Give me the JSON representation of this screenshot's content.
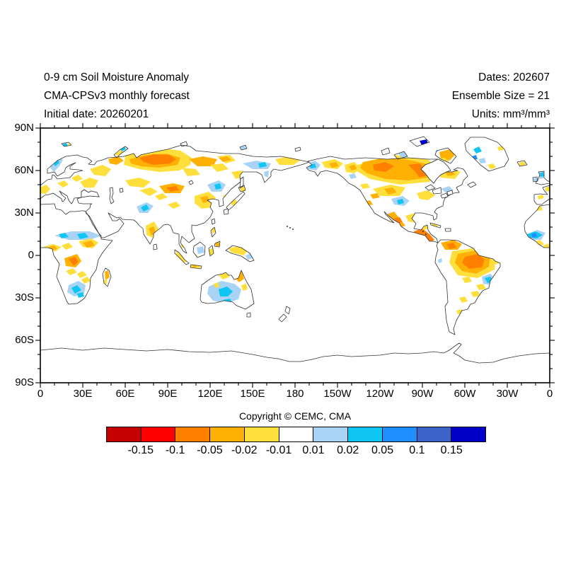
{
  "header": {
    "left": [
      "0-9 cm Soil Moisture Anomaly",
      "CMA-CPSv3 monthly forecast",
      "Initial date: 20260201"
    ],
    "right": [
      "Dates: 202607",
      "Ensemble Size = 21",
      "Units: mm³/mm³"
    ]
  },
  "footer": {
    "copyright": "Copyright © CEMC, CMA"
  },
  "map": {
    "lat_labels": [
      "90N",
      "60N",
      "30N",
      "0",
      "30S",
      "60S",
      "90S"
    ],
    "lon_labels": [
      "0",
      "30E",
      "60E",
      "90E",
      "120E",
      "150E",
      "180",
      "150W",
      "120W",
      "90W",
      "60W",
      "30W",
      "0"
    ]
  },
  "colorbar": {
    "labels": [
      "-0.15",
      "-0.1",
      "-0.05",
      "-0.02",
      "-0.01",
      "0.01",
      "0.02",
      "0.05",
      "0.1",
      "0.15"
    ],
    "colors": [
      "#c40000",
      "#fe0000",
      "#ff8000",
      "#ffb005",
      "#ffdf3c",
      "#ffffff",
      "#a9d3f5",
      "#0fc6f2",
      "#1e8eff",
      "#3c64c8",
      "#0000c8"
    ]
  },
  "palette": {
    "y": "#ffdf3c",
    "a": "#ffb005",
    "o": "#ff8000",
    "lb": "#a9d3f5",
    "cb": "#0fc6f2",
    "b": "#1e8eff",
    "db": "#0000c8"
  },
  "patches": [
    {
      "c": "lb",
      "p": "14,56 20,44 27,40 32,45 26,55 19,62"
    },
    {
      "c": "cb",
      "p": "18,49 24,44 27,49 21,54"
    },
    {
      "c": "y",
      "p": "0,84 8,80 14,86 8,93 0,92"
    },
    {
      "c": "y",
      "p": "24,78 34,74 40,80 32,84"
    },
    {
      "c": "y",
      "p": "44,70 54,66 60,72 50,76"
    },
    {
      "c": "y",
      "p": "56,76 70,70 82,74 76,84 62,84"
    },
    {
      "c": "y",
      "p": "70,58 88,52 100,58 92,68 76,66"
    },
    {
      "c": "a",
      "p": "96,44 110,40 118,46 108,52 98,50"
    },
    {
      "c": "y",
      "p": "118,52 140,58 168,62 196,60 212,52 214,42 198,32 170,28 140,30 120,40"
    },
    {
      "c": "a",
      "p": "126,44 150,38 178,36 198,42 194,52 168,56 142,54 128,50"
    },
    {
      "c": "o",
      "p": "140,42 160,37 182,38 192,44 184,50 160,52 146,48"
    },
    {
      "c": "a",
      "p": "210,44 230,40 250,44 244,54 222,54"
    },
    {
      "c": "y",
      "p": "200,56 220,58 226,66 208,68"
    },
    {
      "c": "y",
      "p": "240,52 258,50 266,58 250,62"
    },
    {
      "c": "y",
      "p": "250,40 268,38 276,46 262,50"
    },
    {
      "c": "a",
      "p": "252,42 264,40 270,45 258,48"
    },
    {
      "c": "lb",
      "p": "286,50 306,46 326,50 322,58 300,58"
    },
    {
      "c": "cb",
      "p": "308,50 318,48 320,54 310,56"
    },
    {
      "c": "y",
      "p": "332,44 352,40 368,45 358,52 338,52"
    },
    {
      "c": "lb",
      "p": "316,62 323,60 322,70 317,68"
    },
    {
      "c": "y",
      "p": "270,62 284,60 290,68 276,72"
    },
    {
      "c": "a",
      "p": "168,82 188,78 204,82 198,92 176,92"
    },
    {
      "c": "o",
      "p": "178,84 192,82 196,88 184,90"
    },
    {
      "c": "y",
      "p": "120,74 140,70 156,76 146,84 126,82"
    },
    {
      "c": "y",
      "p": "140,88 156,84 166,90 154,96"
    },
    {
      "c": "y",
      "p": "162,96 173,92 180,98 168,102"
    },
    {
      "c": "lb",
      "p": "136,111 150,105 160,110 152,120 140,120"
    },
    {
      "c": "cb",
      "p": "142,112 150,108 154,114 146,118"
    },
    {
      "c": "y",
      "p": "180,108 192,104 198,110 188,114"
    },
    {
      "c": "y",
      "p": "149,138 161,132 167,143 159,155 150,151"
    },
    {
      "c": "a",
      "p": "153,142 160,139 163,147 157,152"
    },
    {
      "c": "y",
      "p": "218,96 238,90 248,98 244,112 228,114 218,106"
    },
    {
      "c": "a",
      "p": "226,98 236,96 240,103 230,106"
    },
    {
      "c": "a",
      "p": "240,110 246,108 248,113 242,115"
    },
    {
      "c": "lb",
      "p": "236,80 252,74 262,80 256,90 242,90"
    },
    {
      "c": "cb",
      "p": "246,80 254,78 256,85 248,87"
    },
    {
      "c": "y",
      "p": "258,96 264,93 266,100 260,102"
    },
    {
      "c": "y",
      "p": "268,104 275,100 279,106 272,110"
    },
    {
      "c": "y",
      "p": "282,84 289,82 290,88 284,90"
    },
    {
      "c": "y",
      "p": "214,140 221,137 224,145 216,150"
    },
    {
      "c": "y",
      "p": "198,160 204,157 208,165 200,170"
    },
    {
      "c": "y",
      "p": "192,174 201,181 208,188 202,191 192,179"
    },
    {
      "c": "y",
      "p": "213,193 227,195 226,198 212,197"
    },
    {
      "c": "a",
      "p": "216,193 221,194 220,197 215,196"
    },
    {
      "c": "lb",
      "p": "221,169 230,167 232,176 223,178"
    },
    {
      "c": "y",
      "p": "216,176 222,180 219,184 214,179"
    },
    {
      "c": "y",
      "p": "238,172 244,169 246,178 240,181"
    },
    {
      "c": "y",
      "p": "266,170 280,167 292,174 288,180 270,176"
    },
    {
      "c": "lb",
      "p": "290,180 298,177 300,184 293,186"
    },
    {
      "c": "y",
      "p": "242,142 247,140 248,147 243,149"
    },
    {
      "c": "a",
      "p": "247,163 253,161 253,167 248,167"
    },
    {
      "c": "lb",
      "p": "238,224 256,216 274,220 284,228 280,242 262,248 244,244 236,234"
    },
    {
      "c": "cb",
      "p": "252,228 264,224 272,231 265,238 254,238"
    },
    {
      "c": "cb",
      "p": "258,243 268,241 271,247 261,249"
    },
    {
      "c": "a",
      "p": "277,204 284,200 288,213 281,218 275,212"
    },
    {
      "c": "y",
      "p": "252,208 262,204 268,210 258,214"
    },
    {
      "c": "y",
      "p": "284,222 291,220 293,228 286,230"
    },
    {
      "c": "y",
      "p": "245,220 251,218 253,224 247,226"
    },
    {
      "c": "lb",
      "p": "20,152 44,146 70,146 86,152 70,158 40,158"
    },
    {
      "c": "cb",
      "p": "26,150 35,148 40,154 30,156"
    },
    {
      "c": "cb",
      "p": "52,150 63,148 68,154 56,157"
    },
    {
      "c": "y",
      "p": "4,168 18,164 30,168 22,174 8,174"
    },
    {
      "c": "a",
      "p": "12,168 20,166 24,171 16,173"
    },
    {
      "c": "y",
      "p": "54,160 72,156 82,162 74,170 60,168"
    },
    {
      "c": "a",
      "p": "60,162 72,159 77,166 66,169"
    },
    {
      "c": "y",
      "p": "30,166 40,162 46,168 36,172"
    },
    {
      "c": "a",
      "p": "34,184 52,178 58,188 50,197 36,195"
    },
    {
      "c": "o",
      "p": "40,185 49,182 54,189 47,195"
    },
    {
      "c": "y",
      "p": "36,202 46,198 52,204 42,208"
    },
    {
      "c": "y",
      "p": "52,206 60,202 66,208 56,212"
    },
    {
      "c": "lb",
      "p": "40,222 54,216 64,222 62,234 48,238 38,232"
    },
    {
      "c": "cb",
      "p": "44,226 52,222 58,229 49,234"
    },
    {
      "c": "cb",
      "p": "52,234 60,232 62,238 54,240"
    },
    {
      "c": "y",
      "p": "58,214 66,210 72,216 62,220"
    },
    {
      "c": "a",
      "p": "91,203 96,201 98,211 92,215"
    },
    {
      "c": "y",
      "p": "90,215 94,213 94,221 90,219"
    },
    {
      "c": "lb",
      "p": "684,152 702,144 714,148 708,158 690,158"
    },
    {
      "c": "cb",
      "p": "688,150 700,146 710,151 702,156 692,155"
    },
    {
      "c": "b",
      "p": "694,150 700,148 702,153 696,155"
    },
    {
      "c": "y",
      "p": "696,162 706,158 712,164 704,168"
    },
    {
      "c": "y",
      "p": "711,166 718,163 720,170 712,171"
    },
    {
      "c": "y",
      "p": "700,112 708,110 710,116 702,117"
    },
    {
      "c": "lb",
      "p": "704,62 712,60 714,70 706,72"
    },
    {
      "c": "cb",
      "p": "706,64 711,62 712,68 707,69"
    },
    {
      "c": "lb",
      "p": "697,71 702,70 703,75 698,76"
    },
    {
      "c": "y",
      "p": "703,96 710,94 712,99 704,101"
    },
    {
      "c": "y",
      "p": "714,84 720,82 720,90 714,89"
    },
    {
      "c": "lb",
      "p": "376,50 388,46 396,52 390,60 378,58"
    },
    {
      "c": "cb",
      "p": "380,52 388,50 390,56 382,57"
    },
    {
      "c": "y",
      "p": "398,48 416,44 428,50 420,58 402,56"
    },
    {
      "c": "a",
      "p": "408,50 418,48 422,54 412,56"
    },
    {
      "c": "y",
      "p": "430,52 444,48 452,57 444,64 432,62"
    },
    {
      "c": "a",
      "p": "436,54 444,52 448,58 440,60"
    },
    {
      "c": "lb",
      "p": "436,66 444,64 447,70 439,72"
    },
    {
      "c": "y",
      "p": "448,52 500,38 548,44 562,58 550,76 508,80 466,72 446,60"
    },
    {
      "c": "a",
      "p": "456,48 486,42 516,44 544,50 556,58 548,70 520,74 488,72 462,64 452,56"
    },
    {
      "c": "o",
      "p": "470,52 488,48 500,54 488,62 472,60"
    },
    {
      "c": "o",
      "p": "520,52 536,50 544,58 532,64"
    },
    {
      "c": "o",
      "p": "530,62 542,60 546,67 536,70"
    },
    {
      "c": "db",
      "p": "536,18 546,16 548,22 539,24"
    },
    {
      "c": "b",
      "p": "524,28 534,26 536,32 527,34"
    },
    {
      "c": "cb",
      "p": "552,28 560,26 562,33 554,34"
    },
    {
      "c": "lb",
      "p": "506,36 518,32 522,39 510,42"
    },
    {
      "c": "a",
      "p": "564,34 578,30 586,38 578,46 566,44"
    },
    {
      "c": "y",
      "p": "560,44 572,42 578,49 568,52"
    },
    {
      "c": "y",
      "p": "560,60 580,56 594,62 586,72 566,70"
    },
    {
      "c": "a",
      "p": "572,62 582,60 586,66 576,68"
    },
    {
      "c": "lb",
      "p": "566,86 578,82 584,88 574,92"
    },
    {
      "c": "y",
      "p": "470,86 494,80 516,84 508,96 480,96"
    },
    {
      "c": "a",
      "p": "486,86 498,84 504,91 492,94"
    },
    {
      "c": "a",
      "p": "466,94 476,92 480,98 470,100"
    },
    {
      "c": "lb",
      "p": "496,100 512,96 522,103 514,110 500,108"
    },
    {
      "c": "cb",
      "p": "504,102 512,100 514,106 506,108"
    },
    {
      "c": "y",
      "p": "532,92 548,88 558,95 548,102 536,100"
    },
    {
      "c": "y",
      "p": "452,80 462,78 466,84 456,86"
    },
    {
      "c": "a",
      "p": "458,104 466,102 470,108 462,110"
    },
    {
      "c": "a",
      "p": "490,122 500,118 508,128 516,138 508,141 496,132"
    },
    {
      "c": "o",
      "p": "500,128 508,126 512,133 504,135"
    },
    {
      "c": "y",
      "p": "516,124 530,120 540,127 532,134 520,132"
    },
    {
      "c": "o",
      "p": "528,146 540,142 550,150 557,158 551,162 538,154 530,152"
    },
    {
      "c": "y",
      "p": "540,138 548,136 550,142 542,144"
    },
    {
      "c": "y",
      "p": "553,135 562,137 561,140 554,138"
    },
    {
      "c": "y",
      "p": "582,174 624,168 644,178 642,200 618,212 590,208 578,190"
    },
    {
      "c": "a",
      "p": "590,178 620,172 636,180 634,196 616,206 596,202 586,190"
    },
    {
      "c": "o",
      "p": "600,182 618,178 628,186 624,197 606,199 596,190"
    },
    {
      "c": "a",
      "p": "566,162 584,158 596,164 590,172 572,172"
    },
    {
      "c": "o",
      "p": "574,164 584,162 588,169 578,171"
    },
    {
      "c": "y",
      "p": "636,186 646,184 650,191 640,193"
    },
    {
      "c": "lb",
      "p": "624,210 636,206 644,213 638,222 626,220"
    },
    {
      "c": "cb",
      "p": "628,212 636,210 640,217 632,219"
    },
    {
      "c": "y",
      "p": "616,222 626,220 630,227 620,229"
    },
    {
      "c": "y",
      "p": "608,232 618,230 622,237 612,239"
    },
    {
      "c": "y",
      "p": "596,212 606,210 610,217 600,219"
    },
    {
      "c": "y",
      "p": "592,240 600,238 604,245 596,247"
    },
    {
      "c": "y",
      "p": "588,258 596,256 598,262 590,263"
    },
    {
      "c": "y",
      "p": "584,281 590,279 592,285 585,286"
    },
    {
      "c": "lb",
      "p": "562,186 567,184 568,189 563,191"
    },
    {
      "c": "cb",
      "p": "612,30 620,26 624,33 616,36"
    },
    {
      "c": "b",
      "p": "610,40 616,38 618,44 612,45"
    },
    {
      "c": "lb",
      "p": "620,44 628,42 630,49 622,50"
    },
    {
      "c": "y",
      "p": "632,52 640,50 644,56 636,58"
    },
    {
      "c": "y",
      "p": "646,27 653,25 655,31 648,32"
    },
    {
      "c": "y",
      "p": "677,49 684,47 686,52 678,54"
    },
    {
      "c": "cb",
      "p": "31,23 37,21 39,25 33,27"
    },
    {
      "c": "y",
      "p": "39,22 44,21 45,25 40,26"
    },
    {
      "c": "y",
      "p": "106,37 114,31 118,34 110,40"
    },
    {
      "c": "cb",
      "p": "113,29 119,26 121,30 115,33"
    },
    {
      "c": "lb",
      "p": "283,27 290,25 291,29 284,31"
    }
  ]
}
